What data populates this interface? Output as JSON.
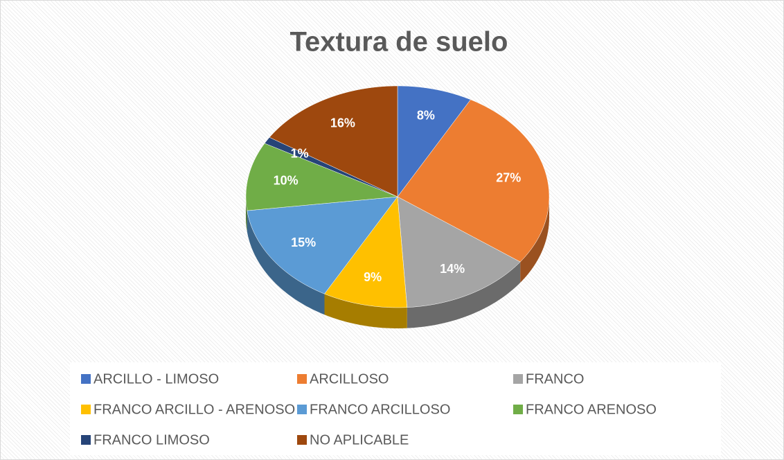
{
  "chart_data": {
    "type": "pie",
    "title": "Textura de suelo",
    "categories": [
      "ARCILLO - LIMOSO",
      "ARCILLOSO",
      "FRANCO",
      "FRANCO ARCILLO - ARENOSO",
      "FRANCO ARCILLOSO",
      "FRANCO ARENOSO",
      "FRANCO LIMOSO",
      "NO APLICABLE"
    ],
    "values": [
      8,
      27,
      14,
      9,
      15,
      10,
      1,
      16
    ],
    "value_labels": [
      "8%",
      "27%",
      "14%",
      "9%",
      "15%",
      "10%",
      "1%",
      "16%"
    ],
    "colors": [
      "#4472c4",
      "#ed7d31",
      "#a5a5a5",
      "#ffc000",
      "#5b9bd5",
      "#70ad47",
      "#264478",
      "#9e480e"
    ],
    "legend": "bottom"
  }
}
